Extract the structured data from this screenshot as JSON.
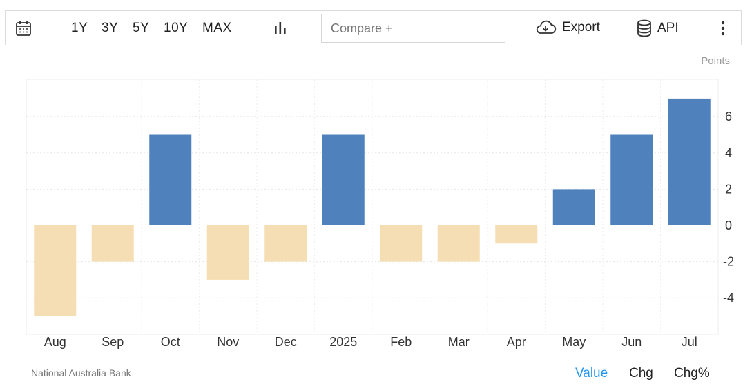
{
  "toolbar": {
    "ranges": [
      "1Y",
      "3Y",
      "5Y",
      "10Y",
      "MAX"
    ],
    "compare_placeholder": "Compare +",
    "export_label": "Export",
    "api_label": "API"
  },
  "unit_label": "Points",
  "source_label": "National Australia Bank",
  "views": {
    "value": "Value",
    "chg": "Chg",
    "chg_pct": "Chg%",
    "active": "Value"
  },
  "colors": {
    "positive": "#4f81bd",
    "negative": "#f5deb3",
    "active_view": "#2196f3"
  },
  "chart_data": {
    "type": "bar",
    "categories": [
      "Aug",
      "Sep",
      "Oct",
      "Nov",
      "Dec",
      "2025",
      "Feb",
      "Mar",
      "Apr",
      "May",
      "Jun",
      "Jul"
    ],
    "values": [
      -5,
      -2,
      5,
      -3,
      -2,
      5,
      -2,
      -2,
      -1,
      2,
      5,
      7
    ],
    "yticks": [
      -4,
      -2,
      0,
      2,
      4,
      6
    ],
    "ylim": [
      -6,
      8
    ],
    "grid": true,
    "title": "",
    "xlabel": "",
    "ylabel": "Points"
  }
}
